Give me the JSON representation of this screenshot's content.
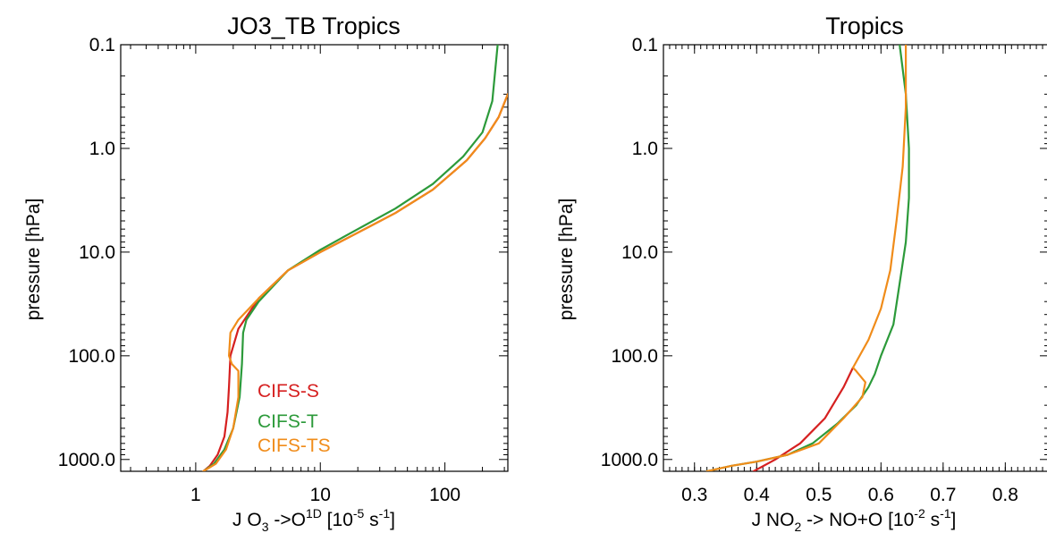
{
  "chart_data": [
    {
      "type": "line",
      "title": "JO3_TB  Tropics",
      "xlabel": {
        "a": "J O",
        "b": "3",
        "c": " ->O",
        "d": "1D",
        "e": " [10",
        "f": "-5",
        "g": " s",
        "h": "-1",
        "i": "]"
      },
      "ylabel": "pressure [hPa]",
      "x_scale": "log",
      "y_scale": "log",
      "y_reversed": true,
      "xlim": [
        0.25,
        320
      ],
      "ylim": [
        1300,
        0.1
      ],
      "x_ticks": [
        1,
        10,
        100
      ],
      "x_tick_labels": [
        "1",
        "10",
        "100"
      ],
      "y_ticks": [
        0.1,
        1.0,
        10.0,
        100.0,
        1000.0
      ],
      "y_tick_labels": [
        "0.1",
        "1.0",
        "10.0",
        "100.0",
        "1000.0"
      ],
      "legend_position": "bottom-center",
      "series": [
        {
          "name": "CIFS-S",
          "color": "#d62020",
          "x": [
            1.15,
            1.3,
            1.5,
            1.7,
            1.8,
            1.85,
            1.9,
            2.2,
            3.2,
            5.5,
            10,
            20,
            40,
            80,
            150,
            210,
            270,
            320
          ],
          "y": [
            1300,
            1150,
            900,
            600,
            350,
            200,
            100,
            55,
            28,
            15,
            10,
            6.5,
            4.2,
            2.5,
            1.3,
            0.8,
            0.5,
            0.3
          ]
        },
        {
          "name": "CIFS-T",
          "color": "#2c9a3a",
          "x": [
            1.15,
            1.4,
            1.7,
            2.0,
            2.25,
            2.35,
            2.4,
            2.55,
            3.2,
            5.5,
            10,
            20,
            40,
            80,
            140,
            200,
            240,
            265
          ],
          "y": [
            1300,
            1100,
            800,
            500,
            250,
            120,
            60,
            45,
            30,
            15,
            9.5,
            6,
            3.8,
            2.2,
            1.2,
            0.7,
            0.35,
            0.1
          ]
        },
        {
          "name": "CIFS-TS",
          "color": "#f08c1a",
          "x": [
            1.15,
            1.45,
            1.75,
            2.0,
            2.2,
            2.2,
            1.95,
            1.85,
            1.9,
            2.2,
            3.2,
            5.5,
            10,
            20,
            40,
            80,
            150,
            210,
            270,
            320
          ],
          "y": [
            1300,
            1100,
            800,
            500,
            250,
            140,
            120,
            100,
            60,
            45,
            28,
            15,
            10,
            6.5,
            4.2,
            2.5,
            1.3,
            0.8,
            0.5,
            0.3
          ]
        }
      ]
    },
    {
      "type": "line",
      "title": "Tropics",
      "xlabel": {
        "a": "J NO",
        "b": "2",
        "c": " -> NO+O [10",
        "d": "-2",
        "e": " s",
        "f": "-1",
        "g": "]"
      },
      "ylabel": "pressure [hPa]",
      "x_scale": "linear",
      "y_scale": "log",
      "y_reversed": true,
      "xlim": [
        0.25,
        0.87
      ],
      "ylim": [
        1300,
        0.1
      ],
      "x_ticks": [
        0.3,
        0.4,
        0.5,
        0.6,
        0.7,
        0.8
      ],
      "x_tick_labels": [
        "0.3",
        "0.4",
        "0.5",
        "0.6",
        "0.7",
        "0.8"
      ],
      "y_ticks": [
        0.1,
        1.0,
        10.0,
        100.0,
        1000.0
      ],
      "y_tick_labels": [
        "0.1",
        "1.0",
        "10.0",
        "100.0",
        "1000.0"
      ],
      "series": [
        {
          "name": "CIFS-S",
          "color": "#d62020",
          "x": [
            0.395,
            0.43,
            0.47,
            0.51,
            0.54,
            0.555
          ],
          "y": [
            1300,
            1000,
            700,
            400,
            200,
            130
          ]
        },
        {
          "name": "CIFS-T",
          "color": "#2c9a3a",
          "x": [
            0.32,
            0.36,
            0.4,
            0.45,
            0.49,
            0.53,
            0.56,
            0.58,
            0.59,
            0.6,
            0.62,
            0.63,
            0.64,
            0.645,
            0.645,
            0.64,
            0.63
          ],
          "y": [
            1300,
            1150,
            1050,
            900,
            700,
            450,
            300,
            200,
            150,
            100,
            50,
            20,
            8,
            3,
            1,
            0.3,
            0.1
          ]
        },
        {
          "name": "CIFS-TS",
          "color": "#f08c1a",
          "x": [
            0.32,
            0.36,
            0.4,
            0.45,
            0.5,
            0.54,
            0.57,
            0.575,
            0.56,
            0.555,
            0.58,
            0.6,
            0.615,
            0.625,
            0.635,
            0.64,
            0.64
          ],
          "y": [
            1300,
            1150,
            1050,
            900,
            700,
            400,
            250,
            180,
            140,
            130,
            70,
            35,
            15,
            5,
            1.5,
            0.4,
            0.1
          ]
        }
      ]
    }
  ]
}
